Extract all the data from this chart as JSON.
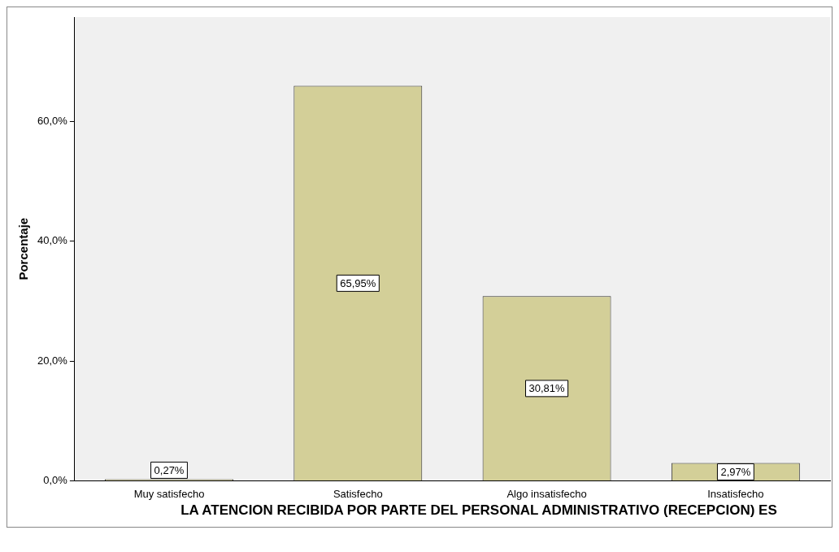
{
  "chart_data": {
    "type": "bar",
    "xlabel": "LA ATENCION RECIBIDA POR PARTE DEL PERSONAL ADMINISTRATIVO (RECEPCION) ES",
    "ylabel": "Porcentaje",
    "categories": [
      "Muy satisfecho",
      "Satisfecho",
      "Algo insatisfecho",
      "Insatisfecho"
    ],
    "values": [
      0.27,
      65.95,
      30.81,
      2.97
    ],
    "value_labels": [
      "0,27%",
      "65,95%",
      "30,81%",
      "2,97%"
    ],
    "color": "#d3cf98",
    "ylim": [
      0,
      77.4
    ],
    "yticks": [
      {
        "value": 0,
        "label": "0,0%"
      },
      {
        "value": 20,
        "label": "20,0%"
      },
      {
        "value": 40,
        "label": "40,0%"
      },
      {
        "value": 60,
        "label": "60,0%"
      }
    ],
    "grid": false,
    "legend": false
  }
}
